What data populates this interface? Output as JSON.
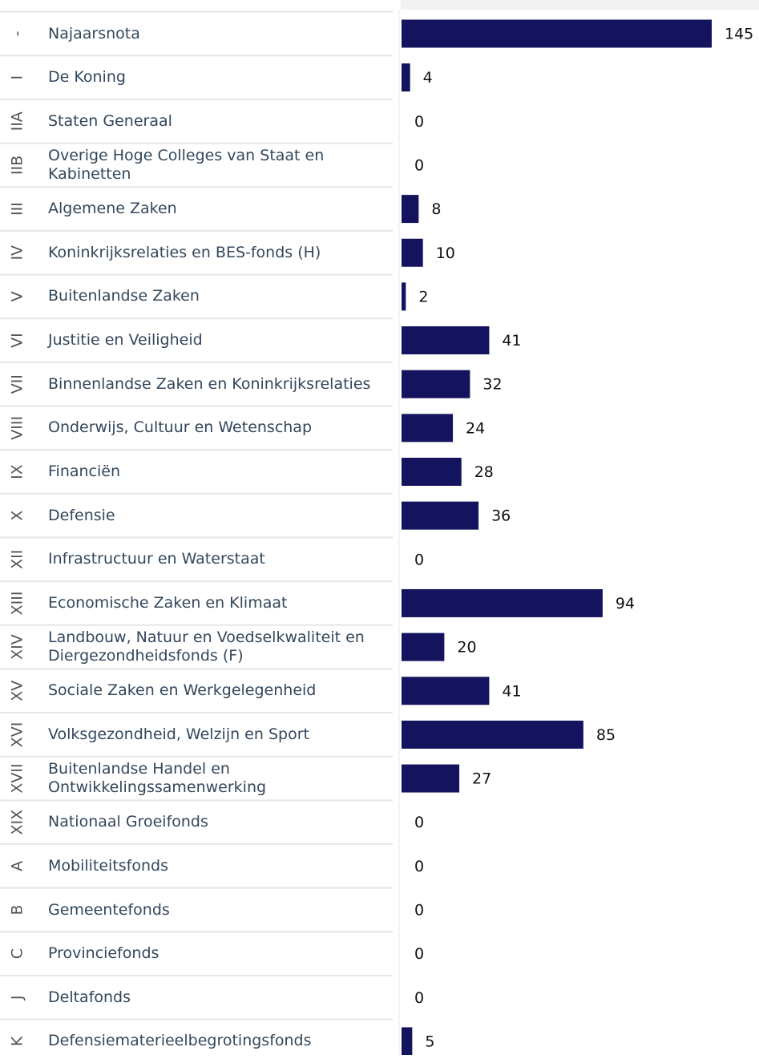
{
  "chart_data": {
    "type": "bar",
    "orientation": "horizontal",
    "color": "#14145e",
    "codes": [
      "-",
      "I",
      "IIA",
      "IIB",
      "III",
      "IV",
      "V",
      "VI",
      "VII",
      "VIII",
      "IX",
      "X",
      "XII",
      "XIII",
      "XIV",
      "XV",
      "XVI",
      "XVII",
      "XIX",
      "A",
      "B",
      "C",
      "J",
      "K"
    ],
    "categories": [
      "Najaarsnota",
      "De Koning",
      "Staten Generaal",
      "Overige Hoge Colleges van Staat en Kabinetten",
      "Algemene Zaken",
      "Koninkrijksrelaties en BES-fonds (H)",
      "Buitenlandse Zaken",
      "Justitie en Veiligheid",
      "Binnenlandse Zaken en Koninkrijksrelaties",
      "Onderwijs, Cultuur en Wetenschap",
      "Financiën",
      "Defensie",
      "Infrastructuur en Waterstaat",
      "Economische Zaken en Klimaat",
      "Landbouw, Natuur en Voedselkwaliteit en Diergezondheidsfonds (F)",
      "Sociale Zaken en Werkgelegenheid",
      "Volksgezondheid, Welzijn en Sport",
      "Buitenlandse Handel en Ontwikkelingssamenwerking",
      "Nationaal Groeifonds",
      "Mobiliteitsfonds",
      "Gemeentefonds",
      "Provinciefonds",
      "Deltafonds",
      "Defensiematerieelbegrotingsfonds"
    ],
    "values": [
      145,
      4,
      0,
      0,
      8,
      10,
      2,
      41,
      32,
      24,
      28,
      36,
      0,
      94,
      20,
      41,
      85,
      27,
      0,
      0,
      0,
      0,
      0,
      5
    ]
  }
}
